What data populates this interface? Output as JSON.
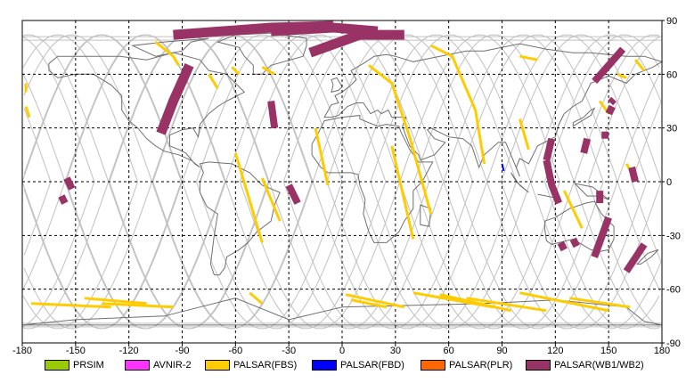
{
  "map": {
    "x_ticks": [
      "-180",
      "-150",
      "-120",
      "-90",
      "-60",
      "-30",
      "0",
      "30",
      "60",
      "90",
      "120",
      "150",
      "180"
    ],
    "y_ticks": [
      "90",
      "60",
      "30",
      "0",
      "-30",
      "-60",
      "-90"
    ]
  },
  "legend": [
    {
      "label": "PRSIM",
      "color": "#99cc00"
    },
    {
      "label": "AVNIR-2",
      "color": "#ff33ff"
    },
    {
      "label": "PALSAR(FBS)",
      "color": "#ffcc00"
    },
    {
      "label": "PALSAR(FBD)",
      "color": "#0000ff"
    },
    {
      "label": "PALSAR(PLR)",
      "color": "#ff6600"
    },
    {
      "label": "PALSAR(WB1/WB2)",
      "color": "#993366"
    }
  ],
  "colors": {
    "coastline": "#707070",
    "orbit_track": "#c0c0c0",
    "grid": "#000000",
    "fbs": "#ffcc00",
    "fbd": "#0000ff",
    "wb": "#993366"
  }
}
